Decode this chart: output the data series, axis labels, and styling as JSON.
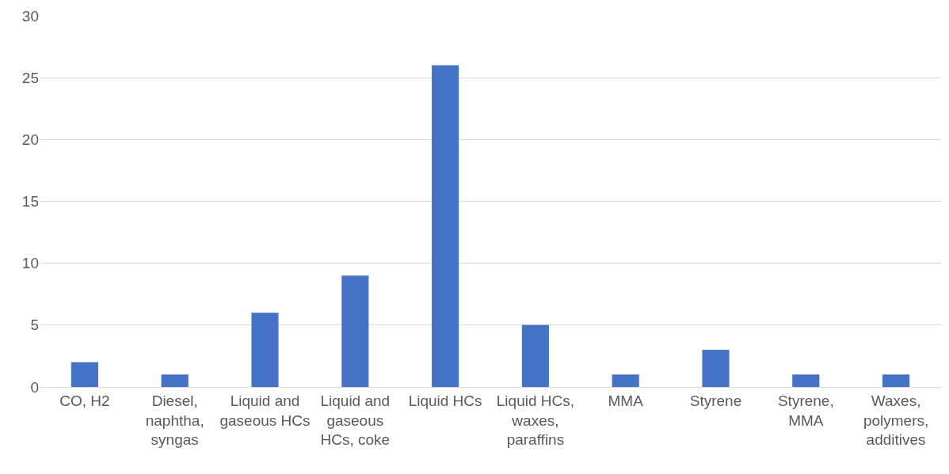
{
  "chart_data": {
    "type": "bar",
    "categories": [
      "CO, H2",
      "Diesel, naphtha, syngas",
      "Liquid and gaseous HCs",
      "Liquid and gaseous HCs, coke",
      "Liquid HCs",
      "Liquid HCs, waxes, paraffins",
      "MMA",
      "Styrene",
      "Styrene, MMA",
      "Waxes, polymers, additives"
    ],
    "values": [
      2,
      1,
      6,
      9,
      26,
      5,
      1,
      3,
      1,
      1
    ],
    "color": "#4472c4",
    "ylim": [
      0,
      30
    ],
    "yticks": [
      0,
      5,
      10,
      15,
      20,
      25,
      30
    ],
    "grid": "y",
    "legend": false
  }
}
